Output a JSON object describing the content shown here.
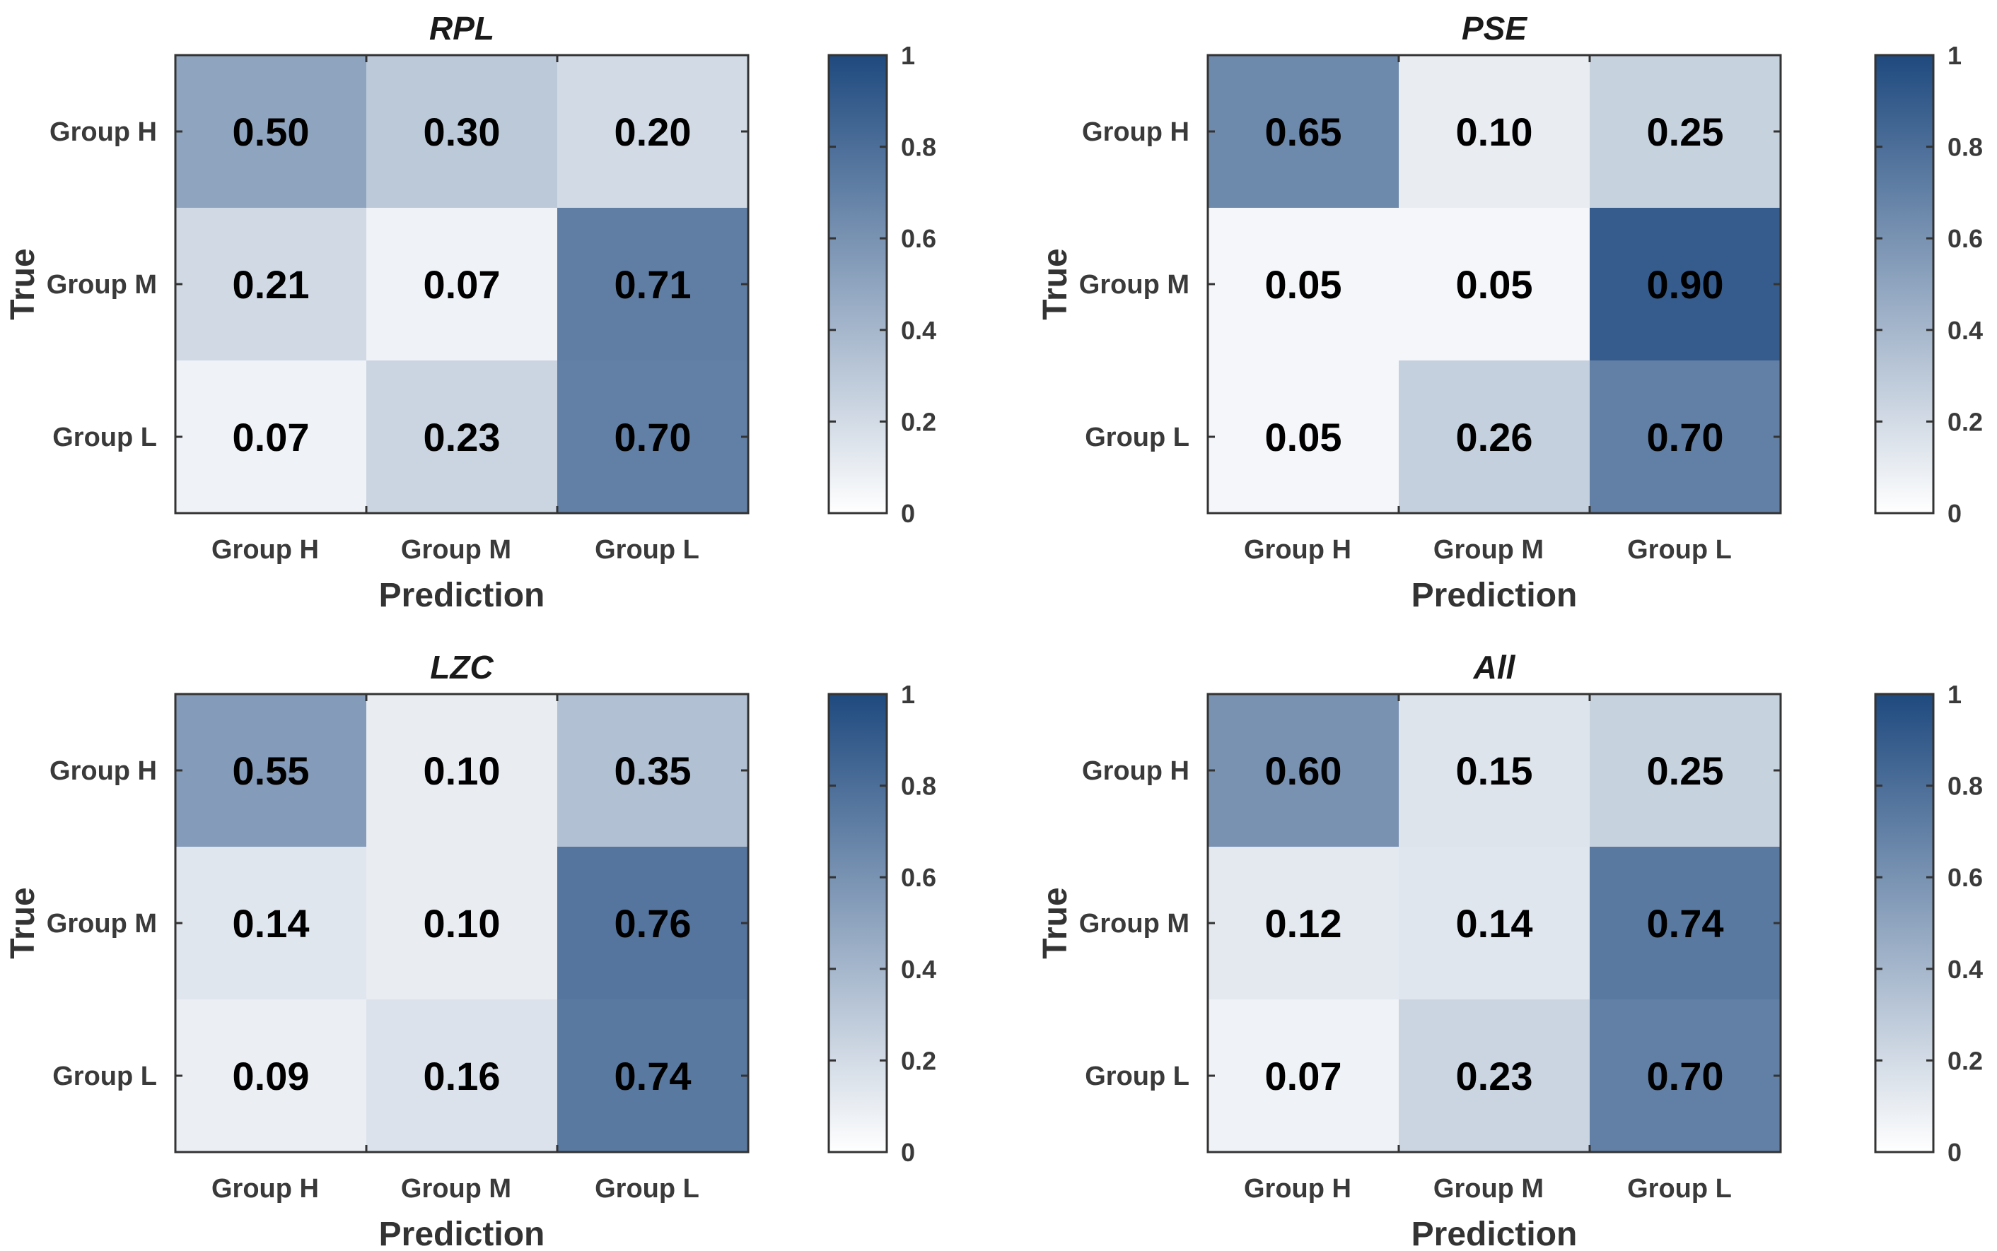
{
  "colormap": {
    "low": "#ffffff",
    "high": "#1f4a7f"
  },
  "chart_data": [
    {
      "type": "heatmap",
      "title": "RPL",
      "xlabel": "Prediction",
      "ylabel": "True",
      "x_categories": [
        "Group H",
        "Group M",
        "Group L"
      ],
      "y_categories": [
        "Group H",
        "Group M",
        "Group L"
      ],
      "values": [
        [
          0.5,
          0.3,
          0.2
        ],
        [
          0.21,
          0.07,
          0.71
        ],
        [
          0.07,
          0.23,
          0.7
        ]
      ],
      "value_labels": [
        [
          "0.50",
          "0.30",
          "0.20"
        ],
        [
          "0.21",
          "0.07",
          "0.71"
        ],
        [
          "0.07",
          "0.23",
          "0.70"
        ]
      ],
      "colorbar": {
        "range": [
          0,
          1
        ],
        "ticks": [
          "0",
          "0.2",
          "0.4",
          "0.6",
          "0.8",
          "1"
        ]
      }
    },
    {
      "type": "heatmap",
      "title": "PSE",
      "xlabel": "Prediction",
      "ylabel": "True",
      "x_categories": [
        "Group H",
        "Group M",
        "Group L"
      ],
      "y_categories": [
        "Group H",
        "Group M",
        "Group L"
      ],
      "values": [
        [
          0.65,
          0.1,
          0.25
        ],
        [
          0.05,
          0.05,
          0.9
        ],
        [
          0.05,
          0.26,
          0.7
        ]
      ],
      "value_labels": [
        [
          "0.65",
          "0.10",
          "0.25"
        ],
        [
          "0.05",
          "0.05",
          "0.90"
        ],
        [
          "0.05",
          "0.26",
          "0.70"
        ]
      ],
      "colorbar": {
        "range": [
          0,
          1
        ],
        "ticks": [
          "0",
          "0.2",
          "0.4",
          "0.6",
          "0.8",
          "1"
        ]
      }
    },
    {
      "type": "heatmap",
      "title": "LZC",
      "xlabel": "Prediction",
      "ylabel": "True",
      "x_categories": [
        "Group H",
        "Group M",
        "Group L"
      ],
      "y_categories": [
        "Group H",
        "Group M",
        "Group L"
      ],
      "values": [
        [
          0.55,
          0.1,
          0.35
        ],
        [
          0.14,
          0.1,
          0.76
        ],
        [
          0.09,
          0.16,
          0.74
        ]
      ],
      "value_labels": [
        [
          "0.55",
          "0.10",
          "0.35"
        ],
        [
          "0.14",
          "0.10",
          "0.76"
        ],
        [
          "0.09",
          "0.16",
          "0.74"
        ]
      ],
      "colorbar": {
        "range": [
          0,
          1
        ],
        "ticks": [
          "0",
          "0.2",
          "0.4",
          "0.6",
          "0.8",
          "1"
        ]
      }
    },
    {
      "type": "heatmap",
      "title": "All",
      "xlabel": "Prediction",
      "ylabel": "True",
      "x_categories": [
        "Group H",
        "Group M",
        "Group L"
      ],
      "y_categories": [
        "Group H",
        "Group M",
        "Group L"
      ],
      "values": [
        [
          0.6,
          0.15,
          0.25
        ],
        [
          0.12,
          0.14,
          0.74
        ],
        [
          0.07,
          0.23,
          0.7
        ]
      ],
      "value_labels": [
        [
          "0.60",
          "0.15",
          "0.25"
        ],
        [
          "0.12",
          "0.14",
          "0.74"
        ],
        [
          "0.07",
          "0.23",
          "0.70"
        ]
      ],
      "colorbar": {
        "range": [
          0,
          1
        ],
        "ticks": [
          "0",
          "0.2",
          "0.4",
          "0.6",
          "0.8",
          "1"
        ]
      }
    }
  ]
}
